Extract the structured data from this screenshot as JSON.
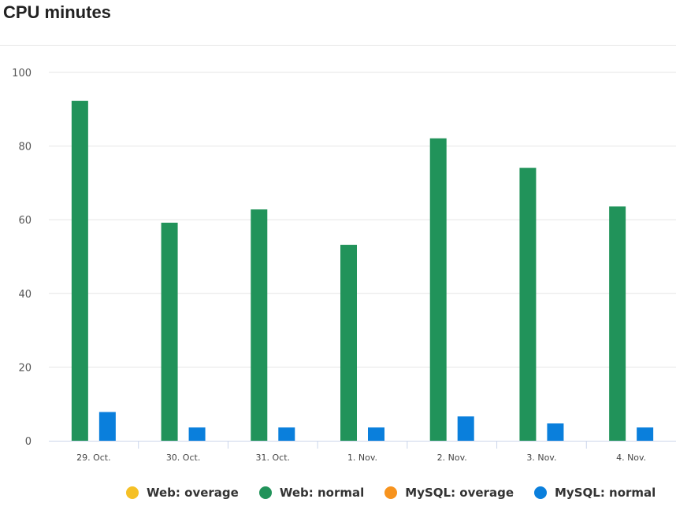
{
  "header": {
    "title": "CPU minutes"
  },
  "chart_data": {
    "type": "bar",
    "title": "CPU minutes",
    "xlabel": "",
    "ylabel": "",
    "categories": [
      "29. Oct.",
      "30. Oct.",
      "31. Oct.",
      "1. Nov.",
      "2. Nov.",
      "3. Nov.",
      "4. Nov."
    ],
    "yticks": [
      0,
      20,
      40,
      60,
      80,
      100
    ],
    "ylim": [
      0,
      100
    ],
    "grid": true,
    "legend_position": "bottom",
    "series": [
      {
        "name": "Web: overage",
        "color": "#f5c026",
        "values": [
          0,
          0,
          0,
          0,
          0,
          0,
          0
        ]
      },
      {
        "name": "Web: normal",
        "color": "#21935a",
        "values": [
          92.3,
          59.2,
          62.8,
          53.2,
          82.1,
          74.1,
          63.6
        ]
      },
      {
        "name": "MySQL: overage",
        "color": "#f7931e",
        "values": [
          0,
          0,
          0,
          0,
          0,
          0,
          0
        ]
      },
      {
        "name": "MySQL: normal",
        "color": "#0a7fdc",
        "values": [
          7.8,
          3.6,
          3.6,
          3.6,
          6.6,
          4.7,
          3.6
        ]
      }
    ]
  }
}
